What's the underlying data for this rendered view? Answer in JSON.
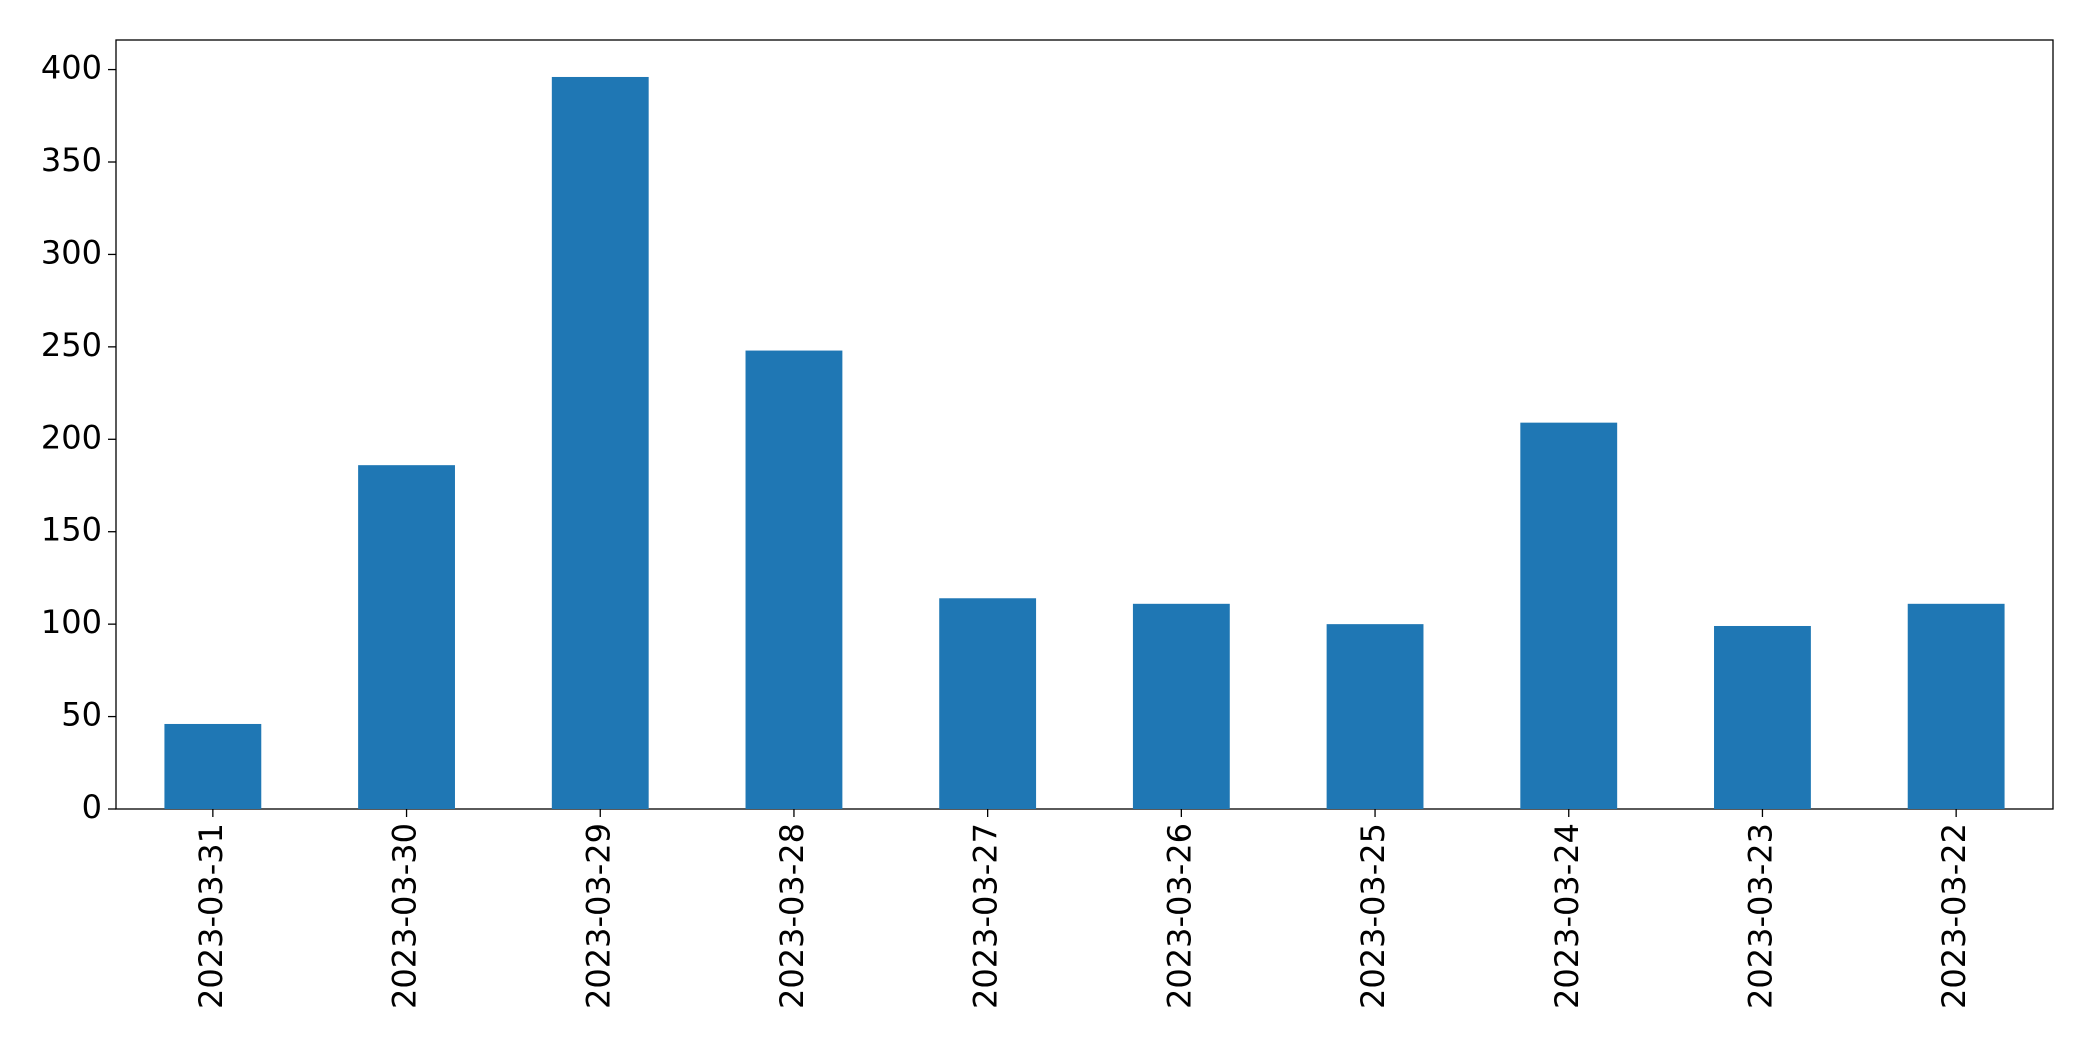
{
  "chart_data": {
    "type": "bar",
    "categories": [
      "2023-03-31",
      "2023-03-30",
      "2023-03-29",
      "2023-03-28",
      "2023-03-27",
      "2023-03-26",
      "2023-03-25",
      "2023-03-24",
      "2023-03-23",
      "2023-03-22"
    ],
    "values": [
      46,
      186,
      396,
      248,
      114,
      111,
      100,
      209,
      99,
      111
    ],
    "color": "#1f77b4",
    "ylim": [
      0,
      416
    ],
    "yticks": [
      0,
      50,
      100,
      150,
      200,
      250,
      300,
      350,
      400
    ],
    "grid": false
  }
}
